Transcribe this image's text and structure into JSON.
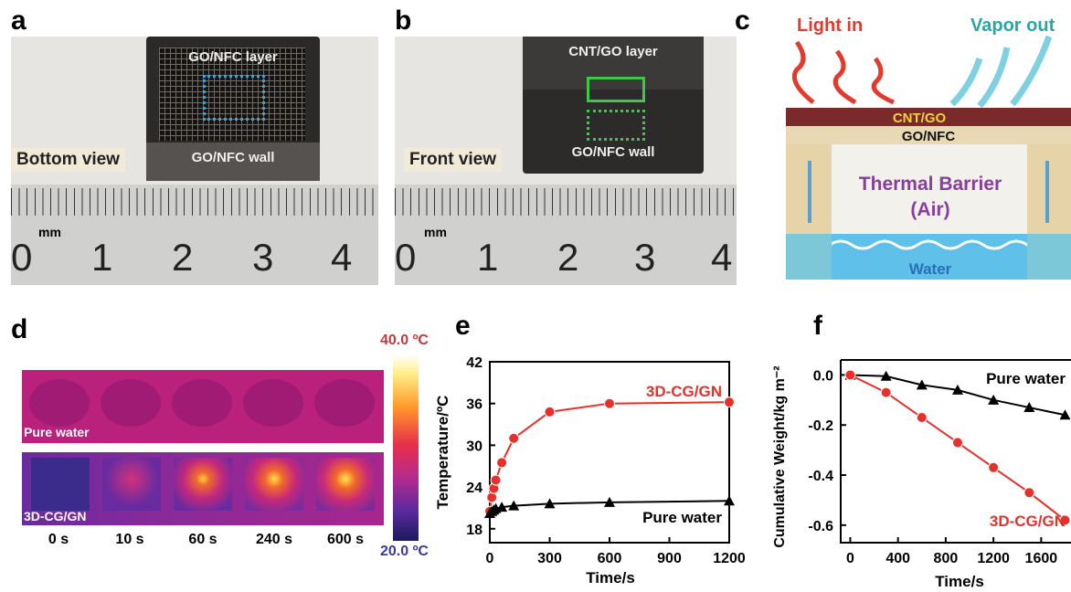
{
  "panels": {
    "a": "a",
    "b": "b",
    "c": "c",
    "d": "d",
    "e": "e",
    "f": "f"
  },
  "panel_a": {
    "layer_label": "GO/NFC layer",
    "wall_label": "GO/NFC wall",
    "view_label": "Bottom view",
    "ruler_unit": "mm",
    "ruler_numbers": [
      "0",
      "1",
      "2",
      "3",
      "4"
    ]
  },
  "panel_b": {
    "layer_label": "CNT/GO layer",
    "wall_label": "GO/NFC wall",
    "view_label": "Front view",
    "ruler_unit": "mm",
    "ruler_numbers": [
      "0",
      "1",
      "2",
      "3",
      "4"
    ]
  },
  "panel_c": {
    "light_in": "Light in",
    "vapor_out": "Vapor out",
    "top_layer": "CNT/GO",
    "mid_layer": "GO/NFC",
    "barrier_line1": "Thermal Barrier",
    "barrier_line2": "(Air)",
    "water": "Water",
    "colors": {
      "light": "#e23b2e",
      "vapor": "#2aa6a6",
      "barrier_text": "#8a3d9e",
      "water": "#3aa6d8"
    }
  },
  "panel_d": {
    "scale_max": "40.0 ºC",
    "scale_min": "20.0 ºC",
    "row1_label": "Pure water",
    "row2_label": "3D-CG/GN",
    "times": [
      "0 s",
      "10 s",
      "60 s",
      "240 s",
      "600 s"
    ]
  },
  "chart_data": [
    {
      "type": "line",
      "panel": "e",
      "xlabel": "Time/s",
      "ylabel": "Temperature/ºC",
      "xlim": [
        0,
        1200
      ],
      "ylim": [
        16,
        42
      ],
      "xticks": [
        0,
        300,
        600,
        900,
        1200
      ],
      "yticks": [
        18,
        24,
        30,
        36,
        42
      ],
      "series": [
        {
          "name": "3D-CG/GN",
          "color": "#e8302a",
          "marker": "circle",
          "x": [
            0,
            10,
            20,
            30,
            60,
            120,
            300,
            600,
            1200
          ],
          "y": [
            20.5,
            22.5,
            23.8,
            25,
            27.5,
            31,
            34.8,
            36,
            36.2
          ]
        },
        {
          "name": "Pure water",
          "color": "#000000",
          "marker": "triangle",
          "x": [
            0,
            10,
            20,
            30,
            60,
            120,
            300,
            600,
            1200
          ],
          "y": [
            20.2,
            20.5,
            20.7,
            20.9,
            21.1,
            21.3,
            21.6,
            21.8,
            22
          ]
        }
      ]
    },
    {
      "type": "line",
      "panel": "f",
      "xlabel": "Time/s",
      "ylabel": "Cumulative Weight/kg m⁻²",
      "xlim": [
        -80,
        1850
      ],
      "ylim": [
        -0.67,
        0.06
      ],
      "xticks": [
        0,
        400,
        800,
        1200,
        1600
      ],
      "yticks": [
        0.0,
        -0.2,
        -0.4,
        -0.6
      ],
      "ytick_labels": [
        "0.0",
        "-0.2",
        "-0.4",
        "-0.6"
      ],
      "series": [
        {
          "name": "Pure water",
          "color": "#000000",
          "marker": "triangle",
          "x": [
            0,
            300,
            600,
            900,
            1200,
            1500,
            1800
          ],
          "y": [
            0,
            -0.005,
            -0.04,
            -0.06,
            -0.1,
            -0.13,
            -0.16
          ]
        },
        {
          "name": "3D-CG/GN",
          "color": "#e8302a",
          "marker": "circle",
          "x": [
            0,
            300,
            600,
            900,
            1200,
            1500,
            1800
          ],
          "y": [
            0,
            -0.07,
            -0.17,
            -0.27,
            -0.37,
            -0.47,
            -0.58
          ]
        }
      ]
    }
  ]
}
